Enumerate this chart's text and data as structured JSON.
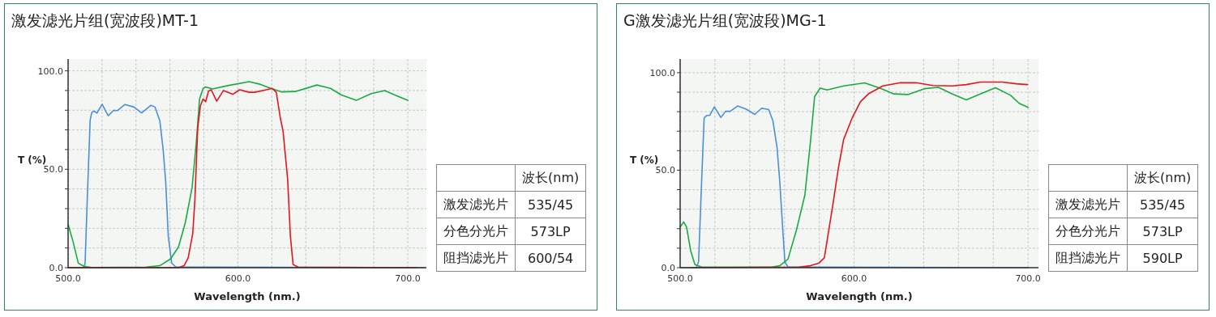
{
  "chart_data": [
    {
      "type": "line",
      "title": "激发滤光片组(宽波段)MT-1",
      "xlabel": "Wavelength (nm.)",
      "ylabel": "T (%)",
      "xlim": [
        500,
        711
      ],
      "ylim": [
        0,
        106
      ],
      "xticks": [
        {
          "value": 500,
          "label": "500.0"
        },
        {
          "value": 520,
          "label": null
        },
        {
          "value": 540,
          "label": null
        },
        {
          "value": 560,
          "label": null
        },
        {
          "value": 580,
          "label": null
        },
        {
          "value": 600,
          "label": "600.0"
        },
        {
          "value": 620,
          "label": null
        },
        {
          "value": 640,
          "label": null
        },
        {
          "value": 660,
          "label": null
        },
        {
          "value": 680,
          "label": null
        },
        {
          "value": 700,
          "label": "700.0"
        }
      ],
      "yticks": [
        {
          "value": 0,
          "label": "0.0"
        },
        {
          "value": 10,
          "label": null
        },
        {
          "value": 20,
          "label": null
        },
        {
          "value": 30,
          "label": null
        },
        {
          "value": 40,
          "label": null
        },
        {
          "value": 50,
          "label": "50.0"
        },
        {
          "value": 60,
          "label": null
        },
        {
          "value": 70,
          "label": null
        },
        {
          "value": 80,
          "label": null
        },
        {
          "value": 90,
          "label": null
        },
        {
          "value": 100,
          "label": "100.0"
        }
      ],
      "grid": true,
      "series": [
        {
          "color": "#4a90d9",
          "x": [
            500,
            509,
            510,
            511.5,
            513,
            514,
            515.5,
            517,
            520,
            523.6,
            526.8,
            529,
            533.5,
            538.8,
            543.3,
            548.8,
            551.2,
            554,
            556,
            557.5,
            559,
            561,
            563.5,
            710
          ],
          "values": [
            0,
            0,
            2,
            40,
            75,
            79,
            79.5,
            78.5,
            83,
            77.2,
            79.9,
            79.8,
            82.9,
            81.6,
            78.6,
            82.5,
            81.6,
            74.7,
            59.7,
            43.3,
            16,
            2.3,
            0.3,
            0
          ]
        },
        {
          "color": "#1aaa44",
          "x": [
            500,
            502.9,
            506,
            509.3,
            514,
            546,
            554,
            560.3,
            565,
            569,
            573,
            575.5,
            577.4,
            579.5,
            581,
            585,
            594,
            606.6,
            613,
            619.4,
            625.8,
            633.8,
            646.5,
            654.5,
            661,
            669.7,
            678.5,
            686.4,
            694.4,
            700
          ],
          "values": [
            22.1,
            13.3,
            2.3,
            0.7,
            0.1,
            0.3,
            1,
            4.4,
            10.5,
            22.8,
            40.6,
            63.8,
            85.7,
            91.1,
            91.8,
            90.8,
            92.5,
            94.5,
            93.2,
            91.1,
            89.3,
            89.5,
            92.8,
            91.1,
            87.7,
            85,
            88.4,
            90,
            87,
            85
          ]
        },
        {
          "color": "#e8141c",
          "x": [
            500,
            565,
            568.3,
            570.7,
            573.4,
            574.7,
            576.3,
            577.9,
            579.5,
            581,
            582.7,
            584.3,
            587.5,
            591.5,
            597,
            601,
            606.6,
            609.8,
            614.6,
            620.2,
            622.6,
            625,
            626.6,
            629.3,
            630.9,
            632.5,
            635.4,
            705
          ],
          "values": [
            0,
            0,
            1,
            5,
            17.3,
            35,
            70.6,
            82.2,
            85.7,
            84.3,
            89.8,
            90.4,
            84.6,
            90,
            88.1,
            90.4,
            89.1,
            89.1,
            90,
            91.1,
            89.1,
            76,
            69.3,
            44.7,
            16,
            1.6,
            0.3,
            0
          ]
        }
      ],
      "annotations": [
        "波长(nm)",
        "激发滤光片",
        "535/45",
        "分色分光片",
        "573LP",
        "阻挡滤光片",
        "600/54"
      ]
    },
    {
      "type": "line",
      "title": "G激发滤光片组(宽波段)MG-1",
      "xlabel": "Wavelength (nm.)",
      "ylabel": "T (%)",
      "xlim": [
        500,
        706
      ],
      "ylim": [
        0,
        107
      ],
      "xticks": [
        {
          "value": 500,
          "label": "500.0"
        },
        {
          "value": 520,
          "label": null
        },
        {
          "value": 540,
          "label": null
        },
        {
          "value": 560,
          "label": null
        },
        {
          "value": 580,
          "label": null
        },
        {
          "value": 600,
          "label": "600.0"
        },
        {
          "value": 620,
          "label": null
        },
        {
          "value": 640,
          "label": null
        },
        {
          "value": 660,
          "label": null
        },
        {
          "value": 680,
          "label": null
        },
        {
          "value": 700,
          "label": "700.0"
        }
      ],
      "yticks": [
        {
          "value": 0,
          "label": "0.0"
        },
        {
          "value": 10,
          "label": null
        },
        {
          "value": 20,
          "label": null
        },
        {
          "value": 30,
          "label": null
        },
        {
          "value": 40,
          "label": null
        },
        {
          "value": 50,
          "label": "50.0"
        },
        {
          "value": 60,
          "label": null
        },
        {
          "value": 70,
          "label": null
        },
        {
          "value": 80,
          "label": null
        },
        {
          "value": 90,
          "label": null
        },
        {
          "value": 100,
          "label": "100.0"
        }
      ],
      "grid": true,
      "series": [
        {
          "color": "#4a90d9",
          "x": [
            500,
            509.3,
            510.6,
            512.2,
            513.8,
            515.4,
            517,
            519.7,
            523.4,
            526.1,
            528.8,
            533,
            538,
            542.9,
            546.9,
            550.9,
            553.3,
            555.7,
            557.3,
            558.9,
            560.2,
            562,
            700
          ],
          "values": [
            0,
            0,
            3,
            41,
            76.8,
            78.1,
            78.1,
            82.5,
            77,
            80.2,
            80.2,
            82.9,
            81.3,
            78.6,
            81.8,
            81.1,
            75.4,
            61.7,
            44,
            20.8,
            3,
            0.3,
            0
          ]
        },
        {
          "color": "#1aaa44",
          "x": [
            500,
            502,
            503.7,
            506.1,
            508.5,
            512.5,
            552.5,
            557.3,
            562,
            566.9,
            571.7,
            574.9,
            577.3,
            580.5,
            584.5,
            594,
            606.1,
            614.9,
            622.9,
            630.9,
            640.5,
            648.5,
            656.5,
            664.5,
            672.5,
            681.3,
            690,
            694.9,
            700
          ],
          "values": [
            20.8,
            23.5,
            20.8,
            8.5,
            1.6,
            0.3,
            0.3,
            1,
            4.4,
            19.4,
            37.2,
            64.5,
            87.7,
            92.1,
            91.1,
            93.2,
            94.8,
            92.1,
            89.1,
            88.8,
            91.8,
            92.5,
            89.1,
            86.1,
            89.1,
            92.3,
            88.4,
            84.3,
            82.2
          ]
        },
        {
          "color": "#e8141c",
          "x": [
            506.1,
            568.5,
            574.9,
            579.7,
            582.9,
            584.5,
            587.7,
            590.9,
            594,
            598.9,
            603.7,
            608.5,
            616.5,
            626.1,
            635.7,
            645.3,
            656.5,
            664.5,
            672.5,
            685.3,
            693.3,
            699.7
          ],
          "values": [
            0,
            0.3,
            1,
            2.3,
            5,
            13.9,
            31.7,
            50.8,
            65.8,
            76.8,
            85.2,
            89.3,
            93.2,
            94.8,
            94.9,
            93.4,
            93.2,
            93.9,
            95.2,
            95.2,
            94.3,
            93.9
          ]
        }
      ],
      "annotations": [
        "波长(nm)",
        "激发滤光片",
        "535/45",
        "分色分光片",
        "573LP",
        "阻挡滤光片",
        "590LP"
      ]
    }
  ]
}
